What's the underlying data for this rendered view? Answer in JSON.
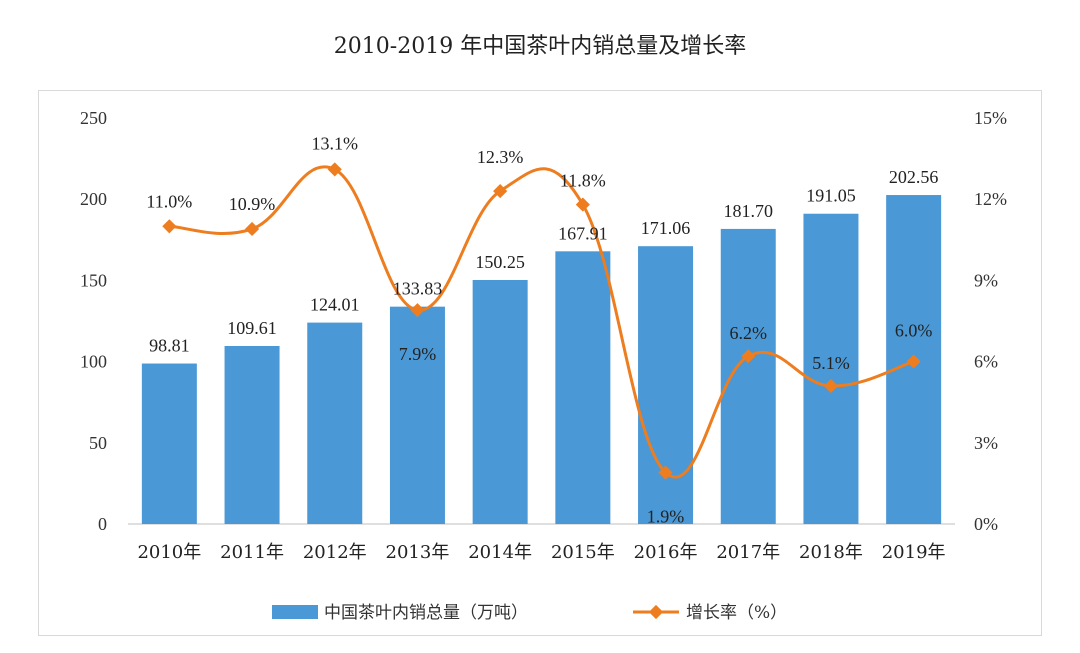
{
  "chart_data": {
    "type": "bar",
    "title": "2010-2019 年中国茶叶内销总量及增长率",
    "categories": [
      "2010年",
      "2011年",
      "2012年",
      "2013年",
      "2014年",
      "2015年",
      "2016年",
      "2017年",
      "2018年",
      "2019年"
    ],
    "series": [
      {
        "name": "中国茶叶内销总量（万吨）",
        "type": "bar",
        "axis": "left",
        "values": [
          98.81,
          109.61,
          124.01,
          133.83,
          150.25,
          167.91,
          171.06,
          181.7,
          191.05,
          202.56
        ],
        "labels": [
          "98.81",
          "109.61",
          "124.01",
          "133.83",
          "150.25",
          "167.91",
          "171.06",
          "181.70",
          "191.05",
          "202.56"
        ],
        "color": "#4a98d6"
      },
      {
        "name": "增长率（%）",
        "type": "line",
        "axis": "right",
        "smooth": true,
        "values": [
          11.0,
          10.9,
          13.1,
          7.9,
          12.3,
          11.8,
          1.9,
          6.2,
          5.1,
          6.0
        ],
        "labels": [
          "11.0%",
          "10.9%",
          "13.1%",
          "7.9%",
          "12.3%",
          "11.8%",
          "1.9%",
          "6.2%",
          "5.1%",
          "6.0%"
        ],
        "color": "#ed7d1f"
      }
    ],
    "y_left": {
      "ylim": [
        0,
        250
      ],
      "ticks": [
        "0",
        "50",
        "100",
        "150",
        "200",
        "250"
      ]
    },
    "y_right": {
      "ylim": [
        0,
        15
      ],
      "ticks": [
        "0%",
        "3%",
        "6%",
        "9%",
        "12%",
        "15%"
      ]
    },
    "grid": false,
    "legend_position": "bottom"
  }
}
